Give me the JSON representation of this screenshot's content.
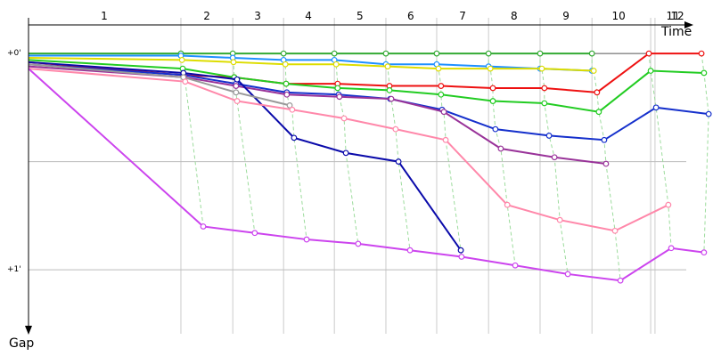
{
  "chart_data": {
    "type": "line",
    "x_label": "Time",
    "y_label": "Gap",
    "xlim": [
      0,
      190
    ],
    "ylim": [
      -0.165,
      1.296
    ],
    "xticks": [
      {
        "value": 21.0,
        "label": "1"
      },
      {
        "value": 49.5,
        "label": "2"
      },
      {
        "value": 63.6,
        "label": "3"
      },
      {
        "value": 77.7,
        "label": "4"
      },
      {
        "value": 92.0,
        "label": "5"
      },
      {
        "value": 106.1,
        "label": "6"
      },
      {
        "value": 120.5,
        "label": "7"
      },
      {
        "value": 134.8,
        "label": "8"
      },
      {
        "value": 149.2,
        "label": "9"
      },
      {
        "value": 163.8,
        "label": "10"
      },
      {
        "value": 178.9,
        "label": "11"
      },
      {
        "value": 180.1,
        "label": "12"
      }
    ],
    "xgrid": [
      42.3,
      56.7,
      70.8,
      84.9,
      99.2,
      113.3,
      127.7,
      142.0,
      156.4,
      172.7,
      173.9
    ],
    "yticks": [
      {
        "value": 0,
        "label": "+0'"
      },
      {
        "value": 1,
        "label": "+1'"
      }
    ],
    "ygrid": [
      0,
      0.5,
      1
    ],
    "grid": true,
    "series": [
      {
        "color": "#33aa33",
        "x": [
          0,
          42.3,
          56.7,
          70.8,
          84.9,
          99.2,
          113.3,
          127.7,
          142.0,
          156.4
        ],
        "values": [
          0,
          0,
          0,
          0,
          0,
          0,
          0,
          0,
          0,
          0
        ]
      },
      {
        "color": "#1e90ff",
        "x": [
          0,
          42.3,
          56.7,
          70.8,
          84.9,
          99.2,
          113.3,
          127.7,
          142.0,
          156.4
        ],
        "values": [
          0.01,
          0.01,
          0.02,
          0.03,
          0.03,
          0.05,
          0.05,
          0.06,
          0.07,
          0.08
        ]
      },
      {
        "color": "#dddd00",
        "x": [
          0,
          42.6,
          56.9,
          71.3,
          85.4,
          99.7,
          113.8,
          128.2,
          142.5,
          156.9
        ],
        "values": [
          0.02,
          0.03,
          0.04,
          0.05,
          0.05,
          0.06,
          0.07,
          0.07,
          0.07,
          0.08
        ]
      },
      {
        "color": "#ee1111",
        "x": [
          0,
          42.8,
          57.1,
          71.5,
          85.8,
          100.2,
          114.5,
          128.9,
          143.2,
          157.8,
          172.2,
          186.8
        ],
        "values": [
          0.04,
          0.1,
          0.11,
          0.14,
          0.14,
          0.15,
          0.15,
          0.16,
          0.16,
          0.18,
          0,
          0
        ]
      },
      {
        "color": "#22cc22",
        "x": [
          0,
          42.8,
          57.1,
          71.5,
          85.8,
          100.2,
          114.5,
          128.9,
          143.2,
          158.3,
          172.7,
          187.5
        ],
        "values": [
          0.03,
          0.07,
          0.11,
          0.14,
          0.16,
          0.17,
          0.19,
          0.22,
          0.23,
          0.27,
          0.08,
          0.09
        ]
      },
      {
        "color": "#1530cc",
        "x": [
          0,
          43.3,
          57.6,
          71.7,
          86.1,
          100.4,
          114.8,
          129.6,
          144.5,
          159.8,
          174.2,
          188.8
        ],
        "values": [
          0.05,
          0.1,
          0.14,
          0.18,
          0.19,
          0.21,
          0.26,
          0.35,
          0.38,
          0.4,
          0.25,
          0.28
        ]
      },
      {
        "color": "#993399",
        "x": [
          0,
          43.3,
          57.6,
          71.7,
          86.3,
          100.7,
          115.3,
          131.1,
          146.0,
          160.3
        ],
        "values": [
          0.06,
          0.11,
          0.15,
          0.19,
          0.2,
          0.21,
          0.27,
          0.44,
          0.48,
          0.51
        ]
      },
      {
        "color": "#0a0aaa",
        "x": [
          0,
          43.0,
          57.9,
          73.7,
          88.1,
          102.7,
          120.0
        ],
        "values": [
          0.04,
          0.09,
          0.12,
          0.39,
          0.46,
          0.5,
          0.91
        ]
      },
      {
        "color": "#999999",
        "x": [
          0,
          43.0,
          57.6,
          72.5
        ],
        "values": [
          0.05,
          0.11,
          0.18,
          0.24
        ]
      },
      {
        "color": "#ff88aa",
        "x": [
          0,
          43.5,
          57.9,
          73.2,
          87.6,
          101.9,
          115.8,
          132.9,
          147.5,
          162.8,
          177.6
        ],
        "values": [
          0.07,
          0.13,
          0.22,
          0.26,
          0.3,
          0.35,
          0.4,
          0.7,
          0.77,
          0.82,
          0.7
        ]
      },
      {
        "color": "#cc44ee",
        "x": [
          0,
          48.5,
          62.8,
          77.2,
          91.5,
          105.9,
          120.2,
          135.1,
          149.7,
          164.3,
          178.4,
          187.5
        ],
        "values": [
          0.07,
          0.8,
          0.83,
          0.86,
          0.88,
          0.91,
          0.94,
          0.98,
          1.02,
          1.05,
          0.9,
          0.92
        ]
      }
    ]
  }
}
